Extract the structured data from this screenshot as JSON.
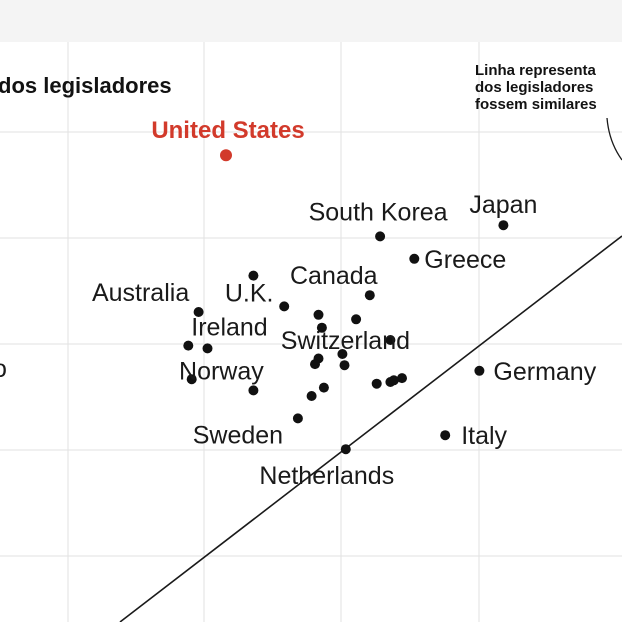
{
  "title": "dos legisladores",
  "annotation": {
    "lines": [
      "Linha representa",
      "dos legisladores",
      "fossem similares"
    ]
  },
  "colors": {
    "highlight": "#d23a2b",
    "point": "#111111",
    "grid": "#e2e2e2",
    "band": "#f4f4f4"
  },
  "chart_data": {
    "type": "scatter",
    "title": "dos legisladores",
    "xlabel": "",
    "ylabel": "",
    "grid": true,
    "reference_line": "diagonal",
    "clipped_label_fragment": "o",
    "points": [
      {
        "label": "United States",
        "highlight": true,
        "x": 2.35,
        "y": 9.05
      },
      {
        "label": "South Korea",
        "x": 4.6,
        "y": 7.6
      },
      {
        "label": "Japan",
        "x": 6.4,
        "y": 7.8
      },
      {
        "label": "Greece",
        "x": 5.1,
        "y": 7.2
      },
      {
        "label": "Canada",
        "x": 4.45,
        "y": 6.55
      },
      {
        "label": "U.K.",
        "x": 3.2,
        "y": 6.35
      },
      {
        "label": "Australia",
        "x": 1.95,
        "y": 6.25
      },
      {
        "label": "Switzerland",
        "x": 4.75,
        "y": 5.75
      },
      {
        "label": "Ireland",
        "x": 2.08,
        "y": 5.6
      },
      {
        "label": "Norway",
        "x": 2.75,
        "y": 4.85
      },
      {
        "label": "Germany",
        "x": 6.05,
        "y": 5.2
      },
      {
        "label": "Sweden",
        "x": 3.4,
        "y": 4.35
      },
      {
        "label": "Italy",
        "x": 5.55,
        "y": 4.05
      },
      {
        "label": "Netherlands",
        "x": 4.1,
        "y": 3.8
      },
      {
        "label": "",
        "x": 2.75,
        "y": 6.9
      },
      {
        "label": "",
        "x": 3.7,
        "y": 6.2
      },
      {
        "label": "",
        "x": 3.75,
        "y": 5.97
      },
      {
        "label": "",
        "x": 4.25,
        "y": 6.12
      },
      {
        "label": "",
        "x": 1.8,
        "y": 5.65
      },
      {
        "label": "",
        "x": 4.05,
        "y": 5.5
      },
      {
        "label": "",
        "x": 3.7,
        "y": 5.42
      },
      {
        "label": "",
        "x": 3.65,
        "y": 5.32
      },
      {
        "label": "",
        "x": 4.08,
        "y": 5.3
      },
      {
        "label": "",
        "x": 1.85,
        "y": 5.05
      },
      {
        "label": "",
        "x": 4.92,
        "y": 5.07
      },
      {
        "label": "",
        "x": 4.75,
        "y": 5.0
      },
      {
        "label": "",
        "x": 4.8,
        "y": 5.03
      },
      {
        "label": "",
        "x": 4.55,
        "y": 4.97
      },
      {
        "label": "",
        "x": 3.78,
        "y": 4.9
      },
      {
        "label": "",
        "x": 3.6,
        "y": 4.75
      }
    ]
  }
}
